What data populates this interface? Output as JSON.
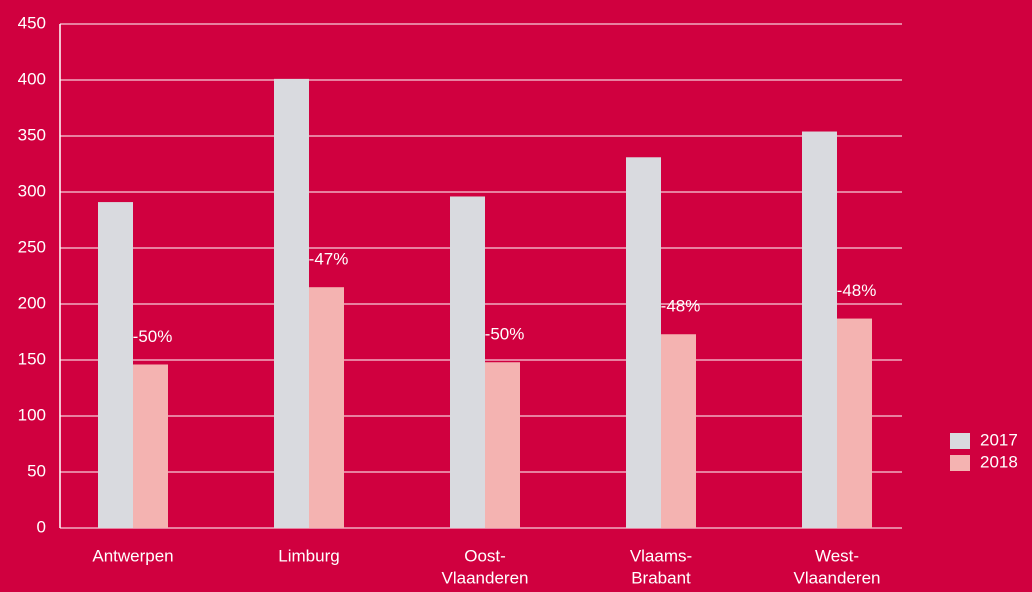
{
  "chart_data": {
    "type": "bar",
    "categories": [
      [
        "Antwerpen"
      ],
      [
        "Limburg"
      ],
      [
        "Oost-",
        "Vlaanderen"
      ],
      [
        "Vlaams-",
        "Brabant"
      ],
      [
        "West-",
        "Vlaanderen"
      ]
    ],
    "series": [
      {
        "name": "2017",
        "color": "#d9dadf",
        "values": [
          291,
          401,
          296,
          331,
          354
        ]
      },
      {
        "name": "2018",
        "color": "#f4b3b1",
        "values": [
          146,
          215,
          148,
          173,
          187
        ]
      }
    ],
    "annotations": [
      "-50%",
      "-47%",
      "-50%",
      "-48%",
      "-48%"
    ],
    "ylim": [
      0,
      450
    ],
    "yticks": [
      0,
      50,
      100,
      150,
      200,
      250,
      300,
      350,
      400,
      450
    ],
    "grid": true,
    "legend": "right",
    "background": "#d0003f"
  }
}
